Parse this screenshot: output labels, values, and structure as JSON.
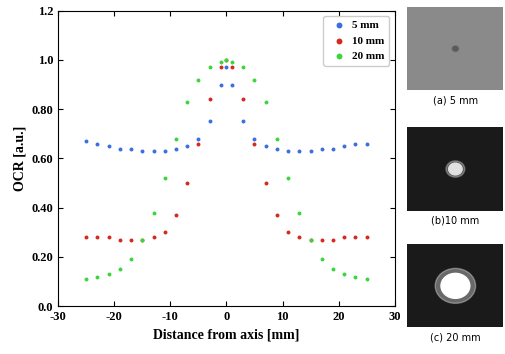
{
  "chart_data": {
    "type": "scatter",
    "x_label": "Distance from axis [mm]",
    "y_label": "OCR [a.u.]",
    "x": [
      -25,
      -23,
      -21,
      -19,
      -17,
      -15,
      -13,
      -11,
      -9,
      -7,
      -5,
      -3,
      -1,
      0,
      1,
      3,
      5,
      7,
      9,
      11,
      13,
      15,
      17,
      19,
      21,
      23,
      25
    ],
    "series": [
      {
        "name": "5 mm",
        "color": "#3b6fe0",
        "marker": "o",
        "values": [
          0.67,
          0.66,
          0.65,
          0.64,
          0.64,
          0.63,
          0.63,
          0.63,
          0.64,
          0.65,
          0.68,
          0.75,
          0.9,
          0.97,
          0.9,
          0.75,
          0.68,
          0.65,
          0.64,
          0.63,
          0.63,
          0.63,
          0.64,
          0.64,
          0.65,
          0.66,
          0.66
        ]
      },
      {
        "name": "10 mm",
        "color": "#d42a1e",
        "marker": "o",
        "values": [
          0.28,
          0.28,
          0.28,
          0.27,
          0.27,
          0.27,
          0.28,
          0.3,
          0.37,
          0.5,
          0.66,
          0.84,
          0.97,
          1.0,
          0.97,
          0.84,
          0.66,
          0.5,
          0.37,
          0.3,
          0.28,
          0.27,
          0.27,
          0.27,
          0.28,
          0.28,
          0.28
        ]
      },
      {
        "name": "20 mm",
        "color": "#3ed43e",
        "marker": "o",
        "values": [
          0.11,
          0.12,
          0.13,
          0.15,
          0.19,
          0.27,
          0.38,
          0.52,
          0.68,
          0.83,
          0.92,
          0.97,
          0.99,
          1.0,
          0.99,
          0.97,
          0.92,
          0.83,
          0.68,
          0.52,
          0.38,
          0.27,
          0.19,
          0.15,
          0.13,
          0.12,
          0.11
        ]
      }
    ],
    "xlim": [
      -30,
      30
    ],
    "xticks": [
      -30,
      -20,
      -10,
      0,
      10,
      20,
      30
    ],
    "ylim": [
      0.0,
      1.2
    ],
    "yticks": [
      0.0,
      {
        "value": 0.2,
        "label": "0.20"
      },
      {
        "value": 0.4,
        "label": "0.40"
      },
      {
        "value": 0.6,
        "label": "0.60"
      },
      {
        "value": 0.8,
        "label": "0.80"
      },
      1.0,
      1.2
    ],
    "legend": "upper right",
    "grid": false
  },
  "images": [
    {
      "caption": "(a) 5 mm"
    },
    {
      "caption": "(b)10 mm"
    },
    {
      "caption": "(c) 20 mm"
    }
  ]
}
